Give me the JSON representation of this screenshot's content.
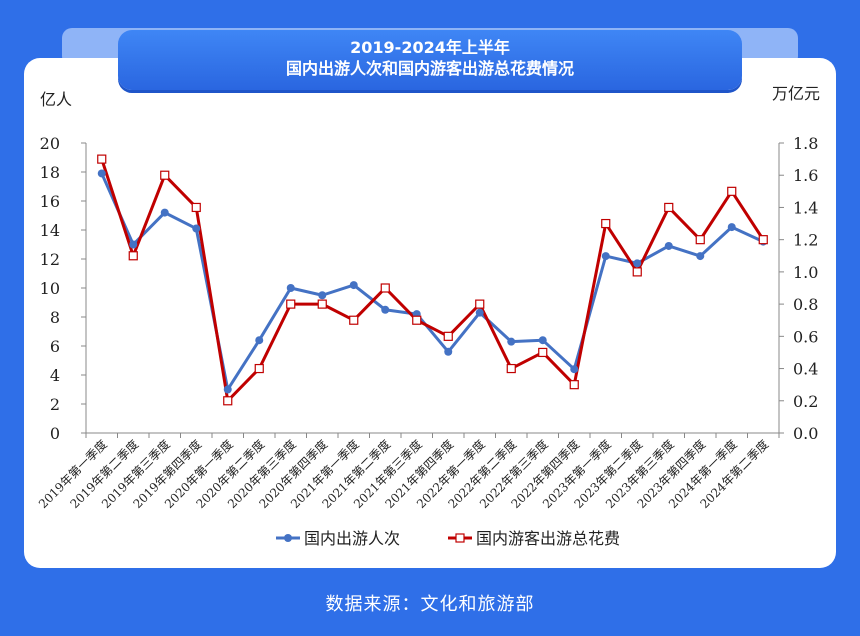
{
  "title_line1": "2019-2024年上半年",
  "title_line2": "国内出游人次和国内游客出游总花费情况",
  "source": "数据来源：文化和旅游部",
  "colors": {
    "background": "#2f6fe8",
    "series1": "#4472c4",
    "series2": "#c00000"
  },
  "chart_data": {
    "type": "line",
    "ylabel_left": "亿人",
    "ylabel_right": "万亿元",
    "ylim_left": [
      0,
      20
    ],
    "yticks_left": [
      "0",
      "2",
      "4",
      "6",
      "8",
      "10",
      "12",
      "14",
      "16",
      "18",
      "20"
    ],
    "ylim_right": [
      0,
      1.8
    ],
    "yticks_right": [
      "0.0",
      "0.2",
      "0.4",
      "0.6",
      "0.8",
      "1.0",
      "1.2",
      "1.4",
      "1.6",
      "1.8"
    ],
    "categories": [
      "2019年第一季度",
      "2019年第二季度",
      "2019年第三季度",
      "2019年第四季度",
      "2020年第一季度",
      "2020年第二季度",
      "2020年第三季度",
      "2020年第四季度",
      "2021年第一季度",
      "2021年第二季度",
      "2021年第三季度",
      "2021年第四季度",
      "2022年第一季度",
      "2022年第二季度",
      "2022年第三季度",
      "2022年第四季度",
      "2023年第一季度",
      "2023年第二季度",
      "2023年第三季度",
      "2023年第四季度",
      "2024年第一季度",
      "2024年第二季度"
    ],
    "series": [
      {
        "name": "国内出游人次",
        "axis": "left",
        "marker": "circle",
        "values": [
          17.9,
          13.0,
          15.2,
          14.1,
          3.0,
          6.4,
          10.0,
          9.5,
          10.2,
          8.5,
          8.2,
          5.6,
          8.3,
          6.3,
          6.4,
          4.4,
          12.2,
          11.7,
          12.9,
          12.2,
          14.2,
          13.2
        ]
      },
      {
        "name": "国内游客出游总花费",
        "axis": "right",
        "marker": "square",
        "values": [
          1.7,
          1.1,
          1.6,
          1.4,
          0.2,
          0.4,
          0.8,
          0.8,
          0.7,
          0.9,
          0.7,
          0.6,
          0.8,
          0.4,
          0.5,
          0.3,
          1.3,
          1.0,
          1.4,
          1.2,
          1.5,
          1.2
        ]
      }
    ],
    "legend_position": "bottom",
    "grid": false
  }
}
